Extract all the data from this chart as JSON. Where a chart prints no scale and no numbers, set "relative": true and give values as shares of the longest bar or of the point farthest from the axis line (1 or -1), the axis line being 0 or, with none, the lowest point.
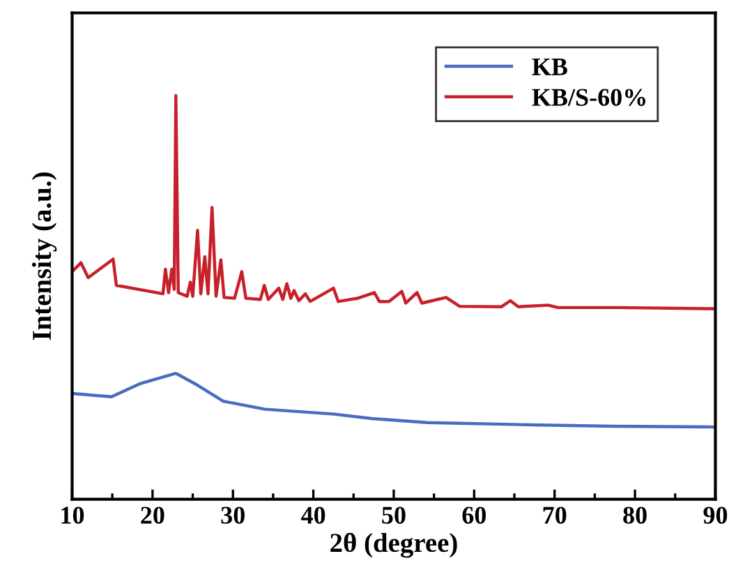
{
  "chart_data": {
    "type": "line",
    "xlabel": "2θ (degree)",
    "ylabel": "Intensity (a.u.)",
    "relative": true,
    "xlim": [
      10,
      90
    ],
    "xticks": [
      10,
      20,
      30,
      40,
      50,
      60,
      70,
      80,
      90
    ],
    "tick_labels": "x",
    "grid": false,
    "legend": "top right",
    "marker": "none",
    "line_style": "solid",
    "series": [
      {
        "name": "KB",
        "color": "#4a6cc0",
        "x": [
          10,
          14.9,
          18.4,
          22.9,
          25.3,
          28.8,
          34.0,
          42.6,
          47.3,
          54.2,
          65.7,
          77.3,
          90
        ],
        "values": [
          0.262,
          0.254,
          0.286,
          0.312,
          0.286,
          0.243,
          0.223,
          0.211,
          0.2,
          0.19,
          0.185,
          0.181,
          0.179
        ]
      },
      {
        "name": "KB/S-60%",
        "color": "#c8202a",
        "x": [
          10,
          11.1,
          12.0,
          15.1,
          15.5,
          21.3,
          21.6,
          22.0,
          22.4,
          22.7,
          22.9,
          23.2,
          24.3,
          24.7,
          25.0,
          25.6,
          26.0,
          26.5,
          26.9,
          27.4,
          27.9,
          28.5,
          28.9,
          30.2,
          31.1,
          31.6,
          33.4,
          33.9,
          34.4,
          35.7,
          36.2,
          36.7,
          37.2,
          37.6,
          38.2,
          39.0,
          39.6,
          42.5,
          43.1,
          45.5,
          47.6,
          48.2,
          49.4,
          51.0,
          51.5,
          52.9,
          53.5,
          54.8,
          56.5,
          58.2,
          63.4,
          64.5,
          65.5,
          69.2,
          70.4,
          77.9,
          90
        ],
        "values": [
          0.564,
          0.586,
          0.549,
          0.595,
          0.53,
          0.509,
          0.57,
          0.512,
          0.57,
          0.52,
          1.0,
          0.512,
          0.503,
          0.538,
          0.503,
          0.666,
          0.509,
          0.601,
          0.509,
          0.723,
          0.503,
          0.593,
          0.5,
          0.498,
          0.564,
          0.498,
          0.495,
          0.53,
          0.495,
          0.523,
          0.495,
          0.534,
          0.498,
          0.517,
          0.492,
          0.509,
          0.49,
          0.523,
          0.49,
          0.498,
          0.512,
          0.49,
          0.49,
          0.515,
          0.486,
          0.512,
          0.486,
          0.492,
          0.5,
          0.478,
          0.477,
          0.492,
          0.477,
          0.481,
          0.475,
          0.475,
          0.472
        ]
      }
    ]
  }
}
